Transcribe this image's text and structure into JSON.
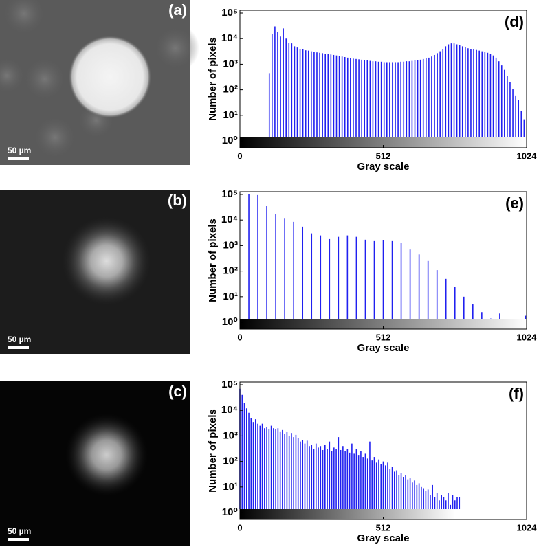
{
  "images": [
    {
      "label": "(a)",
      "scale_bar": "50 µm"
    },
    {
      "label": "(b)",
      "scale_bar": "50 µm"
    },
    {
      "label": "(c)",
      "scale_bar": "50 µm"
    }
  ],
  "chart_data": [
    {
      "type": "bar",
      "label": "(d)",
      "xlabel": "Gray scale",
      "ylabel": "Number of pixels",
      "color": "#2020f0",
      "log_y": true,
      "xlim": [
        0,
        1024
      ],
      "xticks": [
        0,
        512,
        1024
      ],
      "ylim": [
        0.54,
        128000
      ],
      "yticks": [
        {
          "value": 1,
          "label": "10⁰"
        },
        {
          "value": 10,
          "label": "10¹"
        },
        {
          "value": 100,
          "label": "10²"
        },
        {
          "value": 1000,
          "label": "10³"
        },
        {
          "value": 10000,
          "label": "10⁴"
        },
        {
          "value": 100000,
          "label": "10⁵"
        }
      ],
      "x": [
        105,
        115,
        125,
        135,
        145,
        155,
        165,
        175,
        185,
        195,
        205,
        215,
        225,
        235,
        245,
        255,
        265,
        275,
        285,
        295,
        305,
        315,
        325,
        335,
        345,
        355,
        365,
        375,
        385,
        395,
        405,
        415,
        425,
        435,
        445,
        455,
        465,
        475,
        485,
        495,
        505,
        515,
        525,
        535,
        545,
        555,
        565,
        575,
        585,
        595,
        605,
        615,
        625,
        635,
        645,
        655,
        665,
        675,
        685,
        695,
        705,
        715,
        725,
        735,
        745,
        755,
        765,
        775,
        785,
        795,
        805,
        815,
        825,
        835,
        845,
        855,
        865,
        875,
        885,
        895,
        905,
        915,
        925,
        935,
        945,
        955,
        965,
        975,
        985,
        995,
        1005,
        1015
      ],
      "values": [
        450,
        15000,
        30000,
        18000,
        12000,
        25000,
        10000,
        7000,
        6500,
        5000,
        4500,
        4000,
        3800,
        3500,
        3400,
        3200,
        3000,
        2900,
        2800,
        2700,
        2600,
        2500,
        2400,
        2300,
        2200,
        2100,
        2000,
        1900,
        1800,
        1700,
        1650,
        1600,
        1550,
        1500,
        1450,
        1400,
        1350,
        1300,
        1300,
        1250,
        1250,
        1200,
        1200,
        1200,
        1200,
        1200,
        1200,
        1250,
        1250,
        1300,
        1300,
        1350,
        1400,
        1450,
        1500,
        1600,
        1700,
        1800,
        2000,
        2300,
        2700,
        3200,
        4000,
        5000,
        6000,
        6500,
        6500,
        6000,
        5500,
        5000,
        4600,
        4200,
        4000,
        3800,
        3600,
        3400,
        3200,
        3000,
        2800,
        2500,
        2200,
        1800,
        1300,
        900,
        600,
        350,
        200,
        110,
        60,
        40,
        15,
        7
      ]
    },
    {
      "type": "bar",
      "label": "(e)",
      "xlabel": "Gray scale",
      "ylabel": "Number of pixels",
      "color": "#2020f0",
      "log_y": true,
      "xlim": [
        0,
        1024
      ],
      "xticks": [
        0,
        512,
        1024
      ],
      "ylim": [
        0.54,
        128000
      ],
      "yticks": [
        {
          "value": 1,
          "label": "10⁰"
        },
        {
          "value": 10,
          "label": "10¹"
        },
        {
          "value": 100,
          "label": "10²"
        },
        {
          "value": 1000,
          "label": "10³"
        },
        {
          "value": 10000,
          "label": "10⁴"
        },
        {
          "value": 100000,
          "label": "10⁵"
        }
      ],
      "x": [
        32,
        64,
        96,
        128,
        160,
        192,
        224,
        256,
        288,
        320,
        352,
        384,
        416,
        448,
        480,
        512,
        544,
        576,
        608,
        640,
        672,
        704,
        736,
        768,
        800,
        832,
        864,
        896,
        928,
        1020
      ],
      "values": [
        100000,
        95000,
        35000,
        17000,
        12000,
        8500,
        5500,
        3000,
        2500,
        1800,
        2200,
        2500,
        2200,
        1700,
        1500,
        1600,
        1500,
        1300,
        700,
        450,
        250,
        110,
        50,
        25,
        10,
        5,
        2.5,
        1.4,
        2.2,
        1.8
      ]
    },
    {
      "type": "bar",
      "label": "(f)",
      "xlabel": "Gray scale",
      "ylabel": "Number of pixels",
      "color": "#2020f0",
      "log_y": true,
      "xlim": [
        0,
        1024
      ],
      "xticks": [
        0,
        512,
        1024
      ],
      "ylim": [
        0.54,
        128000
      ],
      "yticks": [
        {
          "value": 1,
          "label": "10⁰"
        },
        {
          "value": 10,
          "label": "10¹"
        },
        {
          "value": 100,
          "label": "10²"
        },
        {
          "value": 1000,
          "label": "10³"
        },
        {
          "value": 10000,
          "label": "10⁴"
        },
        {
          "value": 100000,
          "label": "10⁵"
        }
      ],
      "x": [
        0,
        8,
        16,
        24,
        32,
        40,
        48,
        56,
        64,
        72,
        80,
        88,
        96,
        104,
        112,
        120,
        128,
        136,
        144,
        152,
        160,
        168,
        176,
        184,
        192,
        200,
        208,
        216,
        224,
        232,
        240,
        248,
        256,
        264,
        272,
        280,
        288,
        296,
        304,
        312,
        320,
        328,
        336,
        344,
        352,
        360,
        368,
        376,
        384,
        392,
        400,
        408,
        416,
        424,
        432,
        440,
        448,
        456,
        464,
        472,
        480,
        488,
        496,
        504,
        512,
        520,
        528,
        536,
        544,
        552,
        560,
        568,
        576,
        584,
        592,
        600,
        608,
        616,
        624,
        632,
        640,
        648,
        656,
        664,
        672,
        680,
        688,
        696,
        704,
        712,
        720,
        728,
        736,
        744,
        752,
        760,
        768,
        776,
        784
      ],
      "values": [
        70000,
        40000,
        20000,
        12000,
        8000,
        5000,
        3500,
        4500,
        3000,
        2500,
        3000,
        2000,
        2200,
        1800,
        2500,
        2000,
        1800,
        2000,
        1500,
        1700,
        1200,
        1400,
        1000,
        1300,
        900,
        1100,
        800,
        600,
        700,
        500,
        650,
        400,
        450,
        300,
        500,
        350,
        400,
        280,
        450,
        300,
        600,
        250,
        350,
        300,
        900,
        280,
        400,
        250,
        300,
        220,
        500,
        200,
        300,
        180,
        250,
        150,
        200,
        130,
        600,
        110,
        150,
        90,
        120,
        80,
        100,
        70,
        90,
        50,
        60,
        40,
        45,
        30,
        35,
        25,
        30,
        20,
        22,
        15,
        18,
        12,
        14,
        10,
        9,
        7,
        8,
        5,
        12,
        4,
        6,
        3,
        5,
        4,
        3,
        6,
        2,
        5,
        3,
        4,
        4
      ]
    }
  ]
}
